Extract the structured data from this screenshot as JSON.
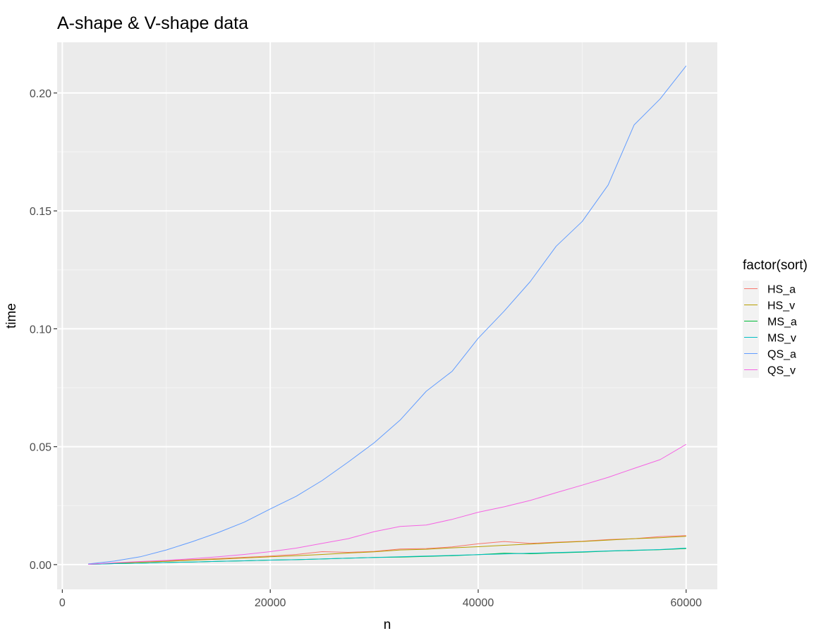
{
  "chart_data": {
    "type": "line",
    "title": "A-shape & V-shape data",
    "xlabel": "n",
    "ylabel": "time",
    "xlim": [
      -500,
      63000
    ],
    "ylim": [
      -0.0105,
      0.2215
    ],
    "x_ticks": [
      0,
      20000,
      40000,
      60000
    ],
    "x_tick_labels": [
      "0",
      "20000",
      "40000",
      "60000"
    ],
    "y_ticks": [
      0.0,
      0.05,
      0.1,
      0.15,
      0.2
    ],
    "y_tick_labels": [
      "0.00",
      "0.05",
      "0.10",
      "0.15",
      "0.20"
    ],
    "grid": true,
    "legend": {
      "title": "factor(sort)",
      "position": "right"
    },
    "series": [
      {
        "name": "HS_a",
        "color": "#F8766D",
        "x": [
          2500,
          5000,
          7500,
          10000,
          12500,
          15000,
          17500,
          20000,
          22500,
          25000,
          27500,
          30000,
          32500,
          35000,
          37500,
          40000,
          42500,
          45000,
          47500,
          50000,
          52500,
          55000,
          57500,
          60000
        ],
        "y": [
          0.0002,
          0.0006,
          0.0011,
          0.0016,
          0.0021,
          0.0026,
          0.0031,
          0.0036,
          0.0043,
          0.0055,
          0.0052,
          0.0056,
          0.0066,
          0.0068,
          0.0075,
          0.0088,
          0.0098,
          0.009,
          0.0095,
          0.0099,
          0.0106,
          0.011,
          0.0119,
          0.0123
        ]
      },
      {
        "name": "HS_v",
        "color": "#B79F00",
        "x": [
          2500,
          5000,
          7500,
          10000,
          12500,
          15000,
          17500,
          20000,
          22500,
          25000,
          27500,
          30000,
          32500,
          35000,
          37500,
          40000,
          42500,
          45000,
          47500,
          50000,
          52500,
          55000,
          57500,
          60000
        ],
        "y": [
          0.0002,
          0.0006,
          0.001,
          0.0014,
          0.0019,
          0.0023,
          0.0028,
          0.0033,
          0.0038,
          0.0043,
          0.0049,
          0.0054,
          0.0062,
          0.0065,
          0.0071,
          0.0076,
          0.0082,
          0.0087,
          0.0093,
          0.0098,
          0.0104,
          0.011,
          0.0114,
          0.012
        ]
      },
      {
        "name": "MS_a",
        "color": "#00BA38",
        "x": [
          2500,
          5000,
          7500,
          10000,
          12500,
          15000,
          17500,
          20000,
          22500,
          25000,
          27500,
          30000,
          32500,
          35000,
          37500,
          40000,
          42500,
          45000,
          47500,
          50000,
          52500,
          55000,
          57500,
          60000
        ],
        "y": [
          0.0001,
          0.0004,
          0.0006,
          0.0009,
          0.0011,
          0.0014,
          0.0016,
          0.0019,
          0.0021,
          0.0024,
          0.0027,
          0.003,
          0.0032,
          0.0035,
          0.0038,
          0.0042,
          0.0048,
          0.0046,
          0.005,
          0.0053,
          0.0057,
          0.006,
          0.0063,
          0.0068
        ]
      },
      {
        "name": "MS_v",
        "color": "#00BFC4",
        "x": [
          2500,
          5000,
          7500,
          10000,
          12500,
          15000,
          17500,
          20000,
          22500,
          25000,
          27500,
          30000,
          32500,
          35000,
          37500,
          40000,
          42500,
          45000,
          47500,
          50000,
          52500,
          55000,
          57500,
          60000
        ],
        "y": [
          0.0001,
          0.0004,
          0.0006,
          0.0009,
          0.0011,
          0.0014,
          0.0016,
          0.0019,
          0.0021,
          0.0024,
          0.0027,
          0.003,
          0.0033,
          0.0036,
          0.0039,
          0.0042,
          0.0045,
          0.0048,
          0.0051,
          0.0054,
          0.0058,
          0.0061,
          0.0064,
          0.007
        ]
      },
      {
        "name": "QS_a",
        "color": "#619CFF",
        "x": [
          2500,
          5000,
          7500,
          10000,
          12500,
          15000,
          17500,
          20000,
          22500,
          25000,
          27500,
          30000,
          32500,
          35000,
          37500,
          40000,
          42500,
          45000,
          47500,
          50000,
          52500,
          55000,
          57500,
          60000
        ],
        "y": [
          0.0003,
          0.0015,
          0.0033,
          0.0062,
          0.0097,
          0.0136,
          0.018,
          0.0236,
          0.029,
          0.0357,
          0.0435,
          0.0517,
          0.0613,
          0.0735,
          0.082,
          0.096,
          0.1075,
          0.12,
          0.135,
          0.1455,
          0.161,
          0.1865,
          0.1975,
          0.2115
        ]
      },
      {
        "name": "QS_v",
        "color": "#F564E3",
        "x": [
          2500,
          5000,
          7500,
          10000,
          12500,
          15000,
          17500,
          20000,
          22500,
          25000,
          27500,
          30000,
          32500,
          35000,
          37500,
          40000,
          42500,
          45000,
          47500,
          50000,
          52500,
          55000,
          57500,
          60000
        ],
        "y": [
          0.0001,
          0.0008,
          0.0013,
          0.0018,
          0.0025,
          0.0033,
          0.0043,
          0.0055,
          0.007,
          0.009,
          0.011,
          0.014,
          0.0162,
          0.0168,
          0.0192,
          0.0222,
          0.0245,
          0.0272,
          0.0305,
          0.0337,
          0.037,
          0.0408,
          0.0445,
          0.051
        ]
      }
    ]
  }
}
